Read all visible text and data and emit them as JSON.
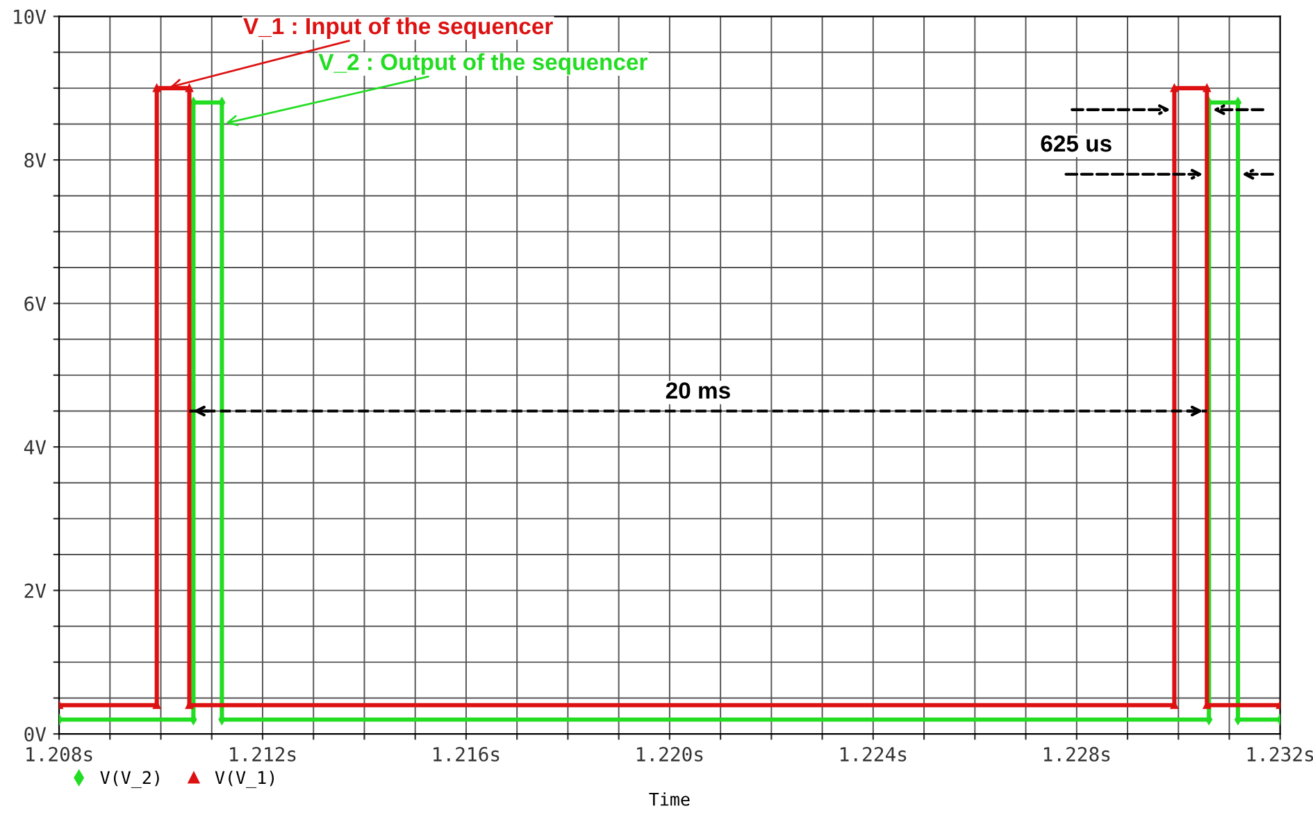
{
  "chart_data": {
    "type": "line",
    "xlabel": "Time",
    "series": [
      {
        "name": "V(V_2)",
        "color": "#22dd22",
        "marker": "diamond",
        "x": [
          1.208,
          1.21064,
          1.21064,
          1.2112,
          1.2112,
          1.2306,
          1.2306,
          1.23117,
          1.23117,
          1.232
        ],
        "values": [
          0.2,
          0.2,
          8.8,
          8.8,
          0.2,
          0.2,
          8.8,
          8.8,
          0.2,
          0.2
        ]
      },
      {
        "name": "V(V_1)",
        "color": "#dd1111",
        "marker": "triangle",
        "x": [
          1.208,
          1.20992,
          1.20992,
          1.21056,
          1.21056,
          1.22992,
          1.22992,
          1.23056,
          1.23056,
          1.232
        ],
        "values": [
          0.4,
          0.4,
          9,
          9,
          0.4,
          0.4,
          9,
          9,
          0.4,
          0.4
        ]
      },
      {
        "color": "#000000",
        "line_style": "dashed",
        "x": [
          1.21056,
          1.23056
        ],
        "values": [
          4.5,
          4.5
        ]
      }
    ],
    "annotations": [
      {
        "text": "V_1 : Input of the sequencer",
        "x": 1.2101,
        "y": 9
      },
      {
        "text": "V_2 : Output of the sequencer",
        "x": 1.2112,
        "y": 8.5
      },
      {
        "text": "20 ms",
        "x": 1.22056,
        "y": 4.5
      },
      {
        "text": "625 us",
        "x": 1.22992,
        "y": 8.7
      }
    ],
    "xlim": [
      1.208,
      1.232
    ],
    "xticks": [
      {
        "value": 1.208,
        "label": "1.208s"
      },
      {
        "value": 1.209,
        "label": null
      },
      {
        "value": 1.21,
        "label": null
      },
      {
        "value": 1.211,
        "label": null
      },
      {
        "value": 1.212,
        "label": "1.212s"
      },
      {
        "value": 1.213,
        "label": null
      },
      {
        "value": 1.214,
        "label": null
      },
      {
        "value": 1.215,
        "label": null
      },
      {
        "value": 1.216,
        "label": "1.216s"
      },
      {
        "value": 1.217,
        "label": null
      },
      {
        "value": 1.218,
        "label": null
      },
      {
        "value": 1.219,
        "label": null
      },
      {
        "value": 1.22,
        "label": "1.220s"
      },
      {
        "value": 1.221,
        "label": null
      },
      {
        "value": 1.222,
        "label": null
      },
      {
        "value": 1.223,
        "label": null
      },
      {
        "value": 1.224,
        "label": "1.224s"
      },
      {
        "value": 1.225,
        "label": null
      },
      {
        "value": 1.226,
        "label": null
      },
      {
        "value": 1.227,
        "label": null
      },
      {
        "value": 1.228,
        "label": "1.228s"
      },
      {
        "value": 1.229,
        "label": null
      },
      {
        "value": 1.23,
        "label": null
      },
      {
        "value": 1.231,
        "label": null
      },
      {
        "value": 1.232,
        "label": "1.232s"
      }
    ],
    "ylim": [
      0,
      10
    ],
    "yticks": [
      {
        "value": 0,
        "label": "0V"
      },
      {
        "value": 0.5,
        "label": null
      },
      {
        "value": 1,
        "label": null
      },
      {
        "value": 1.5,
        "label": null
      },
      {
        "value": 2,
        "label": "2V"
      },
      {
        "value": 2.5,
        "label": null
      },
      {
        "value": 3,
        "label": null
      },
      {
        "value": 3.5,
        "label": null
      },
      {
        "value": 4,
        "label": "4V"
      },
      {
        "value": 4.5,
        "label": null
      },
      {
        "value": 5,
        "label": null
      },
      {
        "value": 5.5,
        "label": null
      },
      {
        "value": 6,
        "label": "6V"
      },
      {
        "value": 6.5,
        "label": null
      },
      {
        "value": 7,
        "label": null
      },
      {
        "value": 7.5,
        "label": null
      },
      {
        "value": 8,
        "label": "8V"
      },
      {
        "value": 8.5,
        "label": null
      },
      {
        "value": 9,
        "label": null
      },
      {
        "value": 9.5,
        "label": null
      },
      {
        "value": 10,
        "label": "10V"
      }
    ],
    "grid": true,
    "legend": "bottom left",
    "line_style": "solid"
  }
}
